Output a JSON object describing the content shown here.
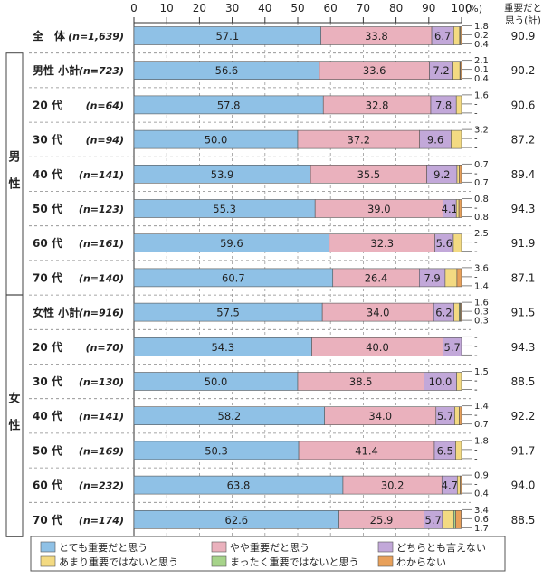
{
  "chart_data": {
    "type": "bar",
    "stacked": true,
    "orientation": "horizontal",
    "xlim": [
      0,
      100
    ],
    "x_ticks": [
      "0",
      "10",
      "20",
      "30",
      "40",
      "50",
      "60",
      "70",
      "80",
      "90",
      "100"
    ],
    "x_unit": "(%)",
    "total_header": [
      "重要だと",
      "思う(計)"
    ],
    "groups": [
      {
        "label": "",
        "label_chars": []
      },
      {
        "label": "男性",
        "label_chars": [
          "男",
          "性"
        ]
      },
      {
        "label": "女性",
        "label_chars": [
          "女",
          "性"
        ]
      }
    ],
    "rows": [
      {
        "label": "全　体",
        "n": "(n=1,639)",
        "group": 0,
        "values": [
          57.1,
          33.8,
          6.7,
          1.8,
          0.2,
          0.4
        ],
        "small_labels": [
          "1.8",
          "0.2",
          "0.4"
        ],
        "total": "90.9"
      },
      {
        "label": "男性 小計",
        "n": "(n=723)",
        "group": 1,
        "values": [
          56.6,
          33.6,
          7.2,
          2.1,
          0.1,
          0.4
        ],
        "small_labels": [
          "2.1",
          "0.1",
          "0.4"
        ],
        "total": "90.2"
      },
      {
        "label": "20 代",
        "n": "(n=64)",
        "group": 1,
        "values": [
          57.8,
          32.8,
          7.8,
          1.6,
          0,
          0
        ],
        "small_labels": [
          "1.6",
          "-",
          "-"
        ],
        "total": "90.6"
      },
      {
        "label": "30 代",
        "n": "(n=94)",
        "group": 1,
        "values": [
          50.0,
          37.2,
          9.6,
          3.2,
          0,
          0
        ],
        "small_labels": [
          "3.2",
          "-",
          "-"
        ],
        "total": "87.2"
      },
      {
        "label": "40 代",
        "n": "(n=141)",
        "group": 1,
        "values": [
          53.9,
          35.5,
          9.2,
          0.7,
          0,
          0.7
        ],
        "small_labels": [
          "0.7",
          "-",
          "0.7"
        ],
        "total": "89.4"
      },
      {
        "label": "50 代",
        "n": "(n=123)",
        "group": 1,
        "values": [
          55.3,
          39.0,
          4.1,
          0.8,
          0,
          0.8
        ],
        "small_labels": [
          "0.8",
          "-",
          "0.8"
        ],
        "total": "94.3"
      },
      {
        "label": "60 代",
        "n": "(n=161)",
        "group": 1,
        "values": [
          59.6,
          32.3,
          5.6,
          2.5,
          0,
          0
        ],
        "small_labels": [
          "2.5",
          "-",
          "-"
        ],
        "total": "91.9"
      },
      {
        "label": "70 代",
        "n": "(n=140)",
        "group": 1,
        "values": [
          60.7,
          26.4,
          7.9,
          3.6,
          0,
          1.4
        ],
        "small_labels": [
          "3.6",
          "-",
          "1.4"
        ],
        "total": "87.1"
      },
      {
        "label": "女性 小計",
        "n": "(n=916)",
        "group": 2,
        "values": [
          57.5,
          34.0,
          6.2,
          1.6,
          0.3,
          0.3
        ],
        "small_labels": [
          "1.6",
          "0.3",
          "0.3"
        ],
        "total": "91.5"
      },
      {
        "label": "20 代",
        "n": "(n=70)",
        "group": 2,
        "values": [
          54.3,
          40.0,
          5.7,
          0,
          0,
          0
        ],
        "small_labels": [
          "-",
          "-",
          "-"
        ],
        "total": "94.3"
      },
      {
        "label": "30 代",
        "n": "(n=130)",
        "group": 2,
        "values": [
          50.0,
          38.5,
          10.0,
          1.5,
          0,
          0
        ],
        "small_labels": [
          "1.5",
          "-",
          "-"
        ],
        "total": "88.5"
      },
      {
        "label": "40 代",
        "n": "(n=141)",
        "group": 2,
        "values": [
          58.2,
          34.0,
          5.7,
          1.4,
          0,
          0.7
        ],
        "small_labels": [
          "1.4",
          "-",
          "0.7"
        ],
        "total": "92.2"
      },
      {
        "label": "50 代",
        "n": "(n=169)",
        "group": 2,
        "values": [
          50.3,
          41.4,
          6.5,
          1.8,
          0,
          0
        ],
        "small_labels": [
          "1.8",
          "-",
          "-"
        ],
        "total": "91.7"
      },
      {
        "label": "60 代",
        "n": "(n=232)",
        "group": 2,
        "values": [
          63.8,
          30.2,
          4.7,
          0.9,
          0,
          0.4
        ],
        "small_labels": [
          "0.9",
          "-",
          "0.4"
        ],
        "total": "94.0"
      },
      {
        "label": "70 代",
        "n": "(n=174)",
        "group": 2,
        "values": [
          62.6,
          25.9,
          5.7,
          3.4,
          0.6,
          1.7
        ],
        "small_labels": [
          "3.4",
          "0.6",
          "1.7"
        ],
        "total": "88.5"
      }
    ],
    "series": [
      {
        "name": "とても重要だと思う",
        "color": "#8fc1e6"
      },
      {
        "name": "やや重要だと思う",
        "color": "#eab1bd"
      },
      {
        "name": "どちらとも言えない",
        "color": "#c2a8d9"
      },
      {
        "name": "あまり重要ではないと思う",
        "color": "#f3da82"
      },
      {
        "name": "まったく重要ではないと思う",
        "color": "#a6d38a"
      },
      {
        "name": "わからない",
        "color": "#e8a05a"
      }
    ]
  }
}
